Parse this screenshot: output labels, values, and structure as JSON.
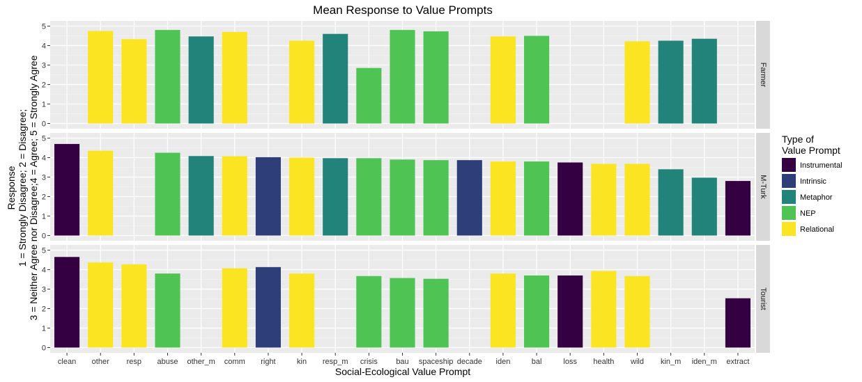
{
  "chart_data": {
    "type": "bar",
    "title": "Mean Response to Value Prompts",
    "xlabel": "Social-Ecological Value Prompt",
    "ylabel_lines": [
      "Response",
      "1 = Strongly Disagree; 2 = Disagree;",
      "3 = Neither Agree nor Disagree;4 = Agree; 5 = Strongly Agree"
    ],
    "ylim": [
      0,
      5
    ],
    "yticks": [
      0,
      1,
      2,
      3,
      4,
      5
    ],
    "grid": true,
    "categories": [
      "clean",
      "other",
      "resp",
      "abuse",
      "other_m",
      "comm",
      "right",
      "kin",
      "resp_m",
      "crisis",
      "bau",
      "spaceship",
      "decade",
      "iden",
      "bal",
      "loss",
      "health",
      "wild",
      "kin_m",
      "iden_m",
      "extract"
    ],
    "legend": {
      "title_lines": [
        "Type of",
        "Value Prompt"
      ],
      "placement": "right",
      "items": [
        {
          "label": "Instrumental",
          "color": "#340042"
        },
        {
          "label": "Intrinsic",
          "color": "#2e3e79"
        },
        {
          "label": "Metaphor",
          "color": "#21837a"
        },
        {
          "label": "NEP",
          "color": "#50c355"
        },
        {
          "label": "Relational",
          "color": "#fbe523"
        }
      ]
    },
    "facets": [
      {
        "name": "Farmer",
        "bars": [
          {
            "category": "other",
            "value": 4.75,
            "type": "Relational"
          },
          {
            "category": "resp",
            "value": 4.33,
            "type": "Relational"
          },
          {
            "category": "abuse",
            "value": 4.8,
            "type": "NEP"
          },
          {
            "category": "other_m",
            "value": 4.47,
            "type": "Metaphor"
          },
          {
            "category": "comm",
            "value": 4.7,
            "type": "Relational"
          },
          {
            "category": "kin",
            "value": 4.25,
            "type": "Relational"
          },
          {
            "category": "resp_m",
            "value": 4.6,
            "type": "Metaphor"
          },
          {
            "category": "crisis",
            "value": 2.85,
            "type": "NEP"
          },
          {
            "category": "bau",
            "value": 4.8,
            "type": "NEP"
          },
          {
            "category": "spaceship",
            "value": 4.73,
            "type": "NEP"
          },
          {
            "category": "iden",
            "value": 4.47,
            "type": "Relational"
          },
          {
            "category": "bal",
            "value": 4.5,
            "type": "NEP"
          },
          {
            "category": "wild",
            "value": 4.22,
            "type": "Relational"
          },
          {
            "category": "kin_m",
            "value": 4.25,
            "type": "Metaphor"
          },
          {
            "category": "iden_m",
            "value": 4.35,
            "type": "Metaphor"
          }
        ]
      },
      {
        "name": "M-Turk",
        "bars": [
          {
            "category": "clean",
            "value": 4.7,
            "type": "Instrumental"
          },
          {
            "category": "other",
            "value": 4.35,
            "type": "Relational"
          },
          {
            "category": "abuse",
            "value": 4.25,
            "type": "NEP"
          },
          {
            "category": "other_m",
            "value": 4.08,
            "type": "Metaphor"
          },
          {
            "category": "comm",
            "value": 4.07,
            "type": "Relational"
          },
          {
            "category": "right",
            "value": 4.02,
            "type": "Intrinsic"
          },
          {
            "category": "kin",
            "value": 4.0,
            "type": "Relational"
          },
          {
            "category": "resp_m",
            "value": 3.97,
            "type": "Metaphor"
          },
          {
            "category": "crisis",
            "value": 3.97,
            "type": "NEP"
          },
          {
            "category": "bau",
            "value": 3.9,
            "type": "NEP"
          },
          {
            "category": "spaceship",
            "value": 3.87,
            "type": "NEP"
          },
          {
            "category": "decade",
            "value": 3.87,
            "type": "Intrinsic"
          },
          {
            "category": "iden",
            "value": 3.8,
            "type": "Relational"
          },
          {
            "category": "bal",
            "value": 3.8,
            "type": "NEP"
          },
          {
            "category": "loss",
            "value": 3.75,
            "type": "Instrumental"
          },
          {
            "category": "health",
            "value": 3.68,
            "type": "Relational"
          },
          {
            "category": "wild",
            "value": 3.68,
            "type": "Relational"
          },
          {
            "category": "kin_m",
            "value": 3.4,
            "type": "Metaphor"
          },
          {
            "category": "iden_m",
            "value": 2.97,
            "type": "Metaphor"
          },
          {
            "category": "extract",
            "value": 2.8,
            "type": "Instrumental"
          }
        ]
      },
      {
        "name": "Tourist",
        "bars": [
          {
            "category": "clean",
            "value": 4.65,
            "type": "Instrumental"
          },
          {
            "category": "other",
            "value": 4.37,
            "type": "Relational"
          },
          {
            "category": "resp",
            "value": 4.27,
            "type": "Relational"
          },
          {
            "category": "abuse",
            "value": 3.8,
            "type": "NEP"
          },
          {
            "category": "comm",
            "value": 4.07,
            "type": "Relational"
          },
          {
            "category": "right",
            "value": 4.13,
            "type": "Intrinsic"
          },
          {
            "category": "kin",
            "value": 3.8,
            "type": "Relational"
          },
          {
            "category": "crisis",
            "value": 3.67,
            "type": "NEP"
          },
          {
            "category": "bau",
            "value": 3.57,
            "type": "NEP"
          },
          {
            "category": "spaceship",
            "value": 3.53,
            "type": "NEP"
          },
          {
            "category": "iden",
            "value": 3.8,
            "type": "Relational"
          },
          {
            "category": "bal",
            "value": 3.7,
            "type": "NEP"
          },
          {
            "category": "loss",
            "value": 3.7,
            "type": "Instrumental"
          },
          {
            "category": "health",
            "value": 3.93,
            "type": "Relational"
          },
          {
            "category": "wild",
            "value": 3.67,
            "type": "Relational"
          },
          {
            "category": "extract",
            "value": 2.53,
            "type": "Instrumental"
          }
        ]
      }
    ]
  }
}
